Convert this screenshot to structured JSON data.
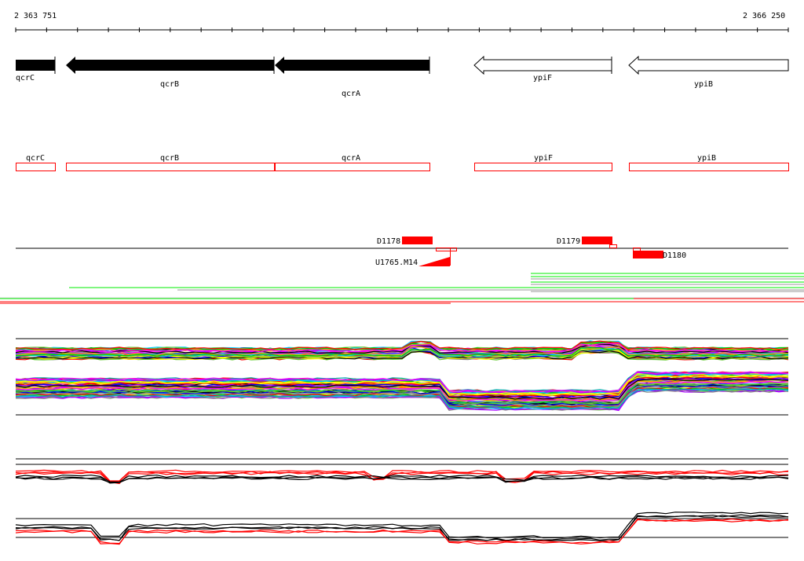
{
  "ruler": {
    "start": "2 363 751",
    "end": "2 366 250"
  },
  "genes": [
    {
      "name": "qcrC",
      "strand": "-",
      "filled": true
    },
    {
      "name": "qcrB",
      "strand": "-",
      "filled": true
    },
    {
      "name": "qcrA",
      "strand": "-",
      "filled": true
    },
    {
      "name": "ypiF",
      "strand": "-",
      "filled": false
    },
    {
      "name": "ypiB",
      "strand": "-",
      "filled": false
    }
  ],
  "features": {
    "d1178": "D1178",
    "d1179": "D1179",
    "d1180": "D1180",
    "u1765": "U1765.M14"
  },
  "colors": {
    "feature": "#ff0000",
    "green": "#00ee00",
    "gray": "#999999"
  }
}
